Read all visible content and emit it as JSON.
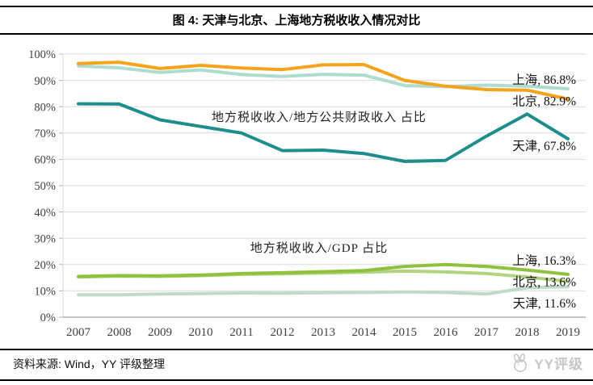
{
  "title": "图 4: 天津与北京、上海地方税收收入情况对比",
  "footer": {
    "source": "资料来源: Wind，YY 评级整理",
    "logo_text": "YY评级"
  },
  "chart_data": {
    "type": "line",
    "x": [
      "2007",
      "2008",
      "2009",
      "2010",
      "2011",
      "2012",
      "2013",
      "2014",
      "2015",
      "2016",
      "2017",
      "2018",
      "2019"
    ],
    "ylim": [
      0,
      100
    ],
    "ytick_step": 10,
    "ytick_suffix": "%",
    "grid": true,
    "legend_position": "line-end-labels",
    "annotations": [
      {
        "id": "fiscal-ratio-annotation",
        "text": "地方税收收入/地方公共财政收入 占比",
        "x_index": 5.9,
        "y_value": 76
      },
      {
        "id": "gdp-ratio-annotation",
        "text": "地方税收收入/GDP 占比",
        "x_index": 5.9,
        "y_value": 26.4
      }
    ],
    "series": [
      {
        "id": "shanghai-tax-to-fiscal",
        "name": "上海 地方税收收入/地方公共财政收入",
        "label": "上海, 86.8%",
        "color": "#AEDCD0",
        "values": [
          95.5,
          94.8,
          93.0,
          94.0,
          92.2,
          91.5,
          92.3,
          92.0,
          88.0,
          87.6,
          88.2,
          87.8,
          86.8
        ]
      },
      {
        "id": "beijing-tax-to-fiscal",
        "name": "北京 地方税收收入/地方公共财政收入",
        "label": "北京, 82.9%",
        "color": "#F4A41C",
        "values": [
          96.4,
          96.9,
          94.5,
          95.7,
          94.7,
          94.1,
          95.9,
          96.0,
          90.0,
          87.8,
          86.5,
          86.3,
          82.9
        ]
      },
      {
        "id": "tianjin-tax-to-fiscal",
        "name": "天津 地方税收收入/地方公共财政收入",
        "label": "天津, 67.8%",
        "color": "#1E8E8C",
        "values": [
          81.1,
          81.0,
          75.0,
          72.5,
          70.0,
          63.3,
          63.5,
          62.2,
          59.2,
          59.6,
          68.8,
          77.2,
          67.8
        ]
      },
      {
        "id": "tianjin-tax-to-gdp",
        "name": "天津 地方税收收入/GDP",
        "label": "天津, 11.6%",
        "color": "#BFDCCB",
        "values": [
          8.5,
          8.5,
          8.8,
          9.0,
          9.2,
          9.1,
          9.3,
          9.4,
          9.6,
          9.4,
          8.8,
          11.2,
          11.6
        ]
      },
      {
        "id": "beijing-tax-to-gdp",
        "name": "北京 地方税收收入/GDP",
        "label": "北京, 13.6%",
        "color": "#B2D47E",
        "values": [
          15.3,
          15.6,
          15.5,
          15.8,
          16.3,
          16.5,
          16.8,
          17.1,
          17.5,
          17.2,
          16.6,
          15.3,
          13.6
        ]
      },
      {
        "id": "shanghai-tax-to-gdp",
        "name": "上海 地方税收收入/GDP",
        "label": "上海, 16.3%",
        "color": "#8EC13C",
        "values": [
          15.5,
          15.8,
          15.7,
          16.0,
          16.6,
          16.9,
          17.3,
          17.7,
          19.3,
          20.0,
          19.3,
          17.9,
          16.3
        ]
      }
    ]
  }
}
